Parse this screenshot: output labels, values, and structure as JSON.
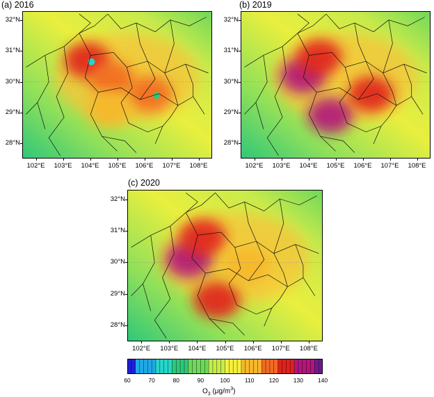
{
  "panels": [
    {
      "id": "a",
      "title": "(a) 2016",
      "lat_labels": [
        "32°N",
        "31°N",
        "30°N",
        "29°N",
        "28°N"
      ],
      "lon_labels": [
        "102°E",
        "103°E",
        "104°E",
        "105°E",
        "106°E",
        "107°E",
        "108°E"
      ]
    },
    {
      "id": "b",
      "title": "(b) 2019",
      "lat_labels": [
        "32°N",
        "31°N",
        "30°N",
        "29°N",
        "28°N"
      ],
      "lon_labels": [
        "102°E",
        "103°E",
        "104°E",
        "105°E",
        "106°E",
        "107°E",
        "108°E"
      ]
    },
    {
      "id": "c",
      "title": "(c) 2020",
      "lat_labels": [
        "32°N",
        "31°N",
        "30°N",
        "29°N",
        "28°N"
      ],
      "lon_labels": [
        "102°E",
        "103°E",
        "104°E",
        "105°E",
        "106°E",
        "107°E",
        "108°E"
      ]
    }
  ],
  "colorbar": {
    "ticks": [
      "60",
      "70",
      "80",
      "90",
      "100",
      "110",
      "120",
      "130",
      "140"
    ],
    "title_main": "O",
    "title_sub": "3",
    "title_unit": "(μg/m",
    "title_sup": "3",
    "title_close": ")",
    "range": [
      60,
      140
    ],
    "colors": [
      "#1f1fd9",
      "#1fa8e6",
      "#25d6c8",
      "#2fc77a",
      "#6fd85a",
      "#c6ec4a",
      "#f6f03a",
      "#f7b72c",
      "#f26a22",
      "#e0221c",
      "#b2167a",
      "#6e1a90"
    ]
  },
  "chart_data": {
    "type": "heatmap",
    "variable": "O3",
    "unit": "μg/m3",
    "value_range": [
      60,
      140
    ],
    "lat_range": [
      27.5,
      32.3
    ],
    "lon_range": [
      101.5,
      108.5
    ],
    "panels": [
      {
        "title": "(a) 2016",
        "hotspots": [
          {
            "lon": 103.9,
            "lat": 30.7,
            "o3": 125
          },
          {
            "lon": 104.8,
            "lat": 30.1,
            "o3": 118
          },
          {
            "lon": 106.2,
            "lat": 29.6,
            "o3": 120
          },
          {
            "lon": 104.7,
            "lat": 29.1,
            "o3": 112
          }
        ],
        "low_spots": [
          {
            "lon": 104.05,
            "lat": 30.65,
            "o3": 78
          },
          {
            "lon": 106.45,
            "lat": 29.55,
            "o3": 82
          }
        ]
      },
      {
        "title": "(b) 2019",
        "hotspots": [
          {
            "lon": 103.8,
            "lat": 30.2,
            "o3": 135
          },
          {
            "lon": 104.4,
            "lat": 30.8,
            "o3": 128
          },
          {
            "lon": 104.8,
            "lat": 28.9,
            "o3": 130
          },
          {
            "lon": 106.3,
            "lat": 29.6,
            "o3": 122
          }
        ],
        "low_spots": []
      },
      {
        "title": "(c) 2020",
        "hotspots": [
          {
            "lon": 103.7,
            "lat": 30.1,
            "o3": 130
          },
          {
            "lon": 104.2,
            "lat": 30.8,
            "o3": 124
          },
          {
            "lon": 104.7,
            "lat": 28.8,
            "o3": 122
          },
          {
            "lon": 105.8,
            "lat": 29.9,
            "o3": 112
          }
        ],
        "low_spots": []
      }
    ]
  }
}
